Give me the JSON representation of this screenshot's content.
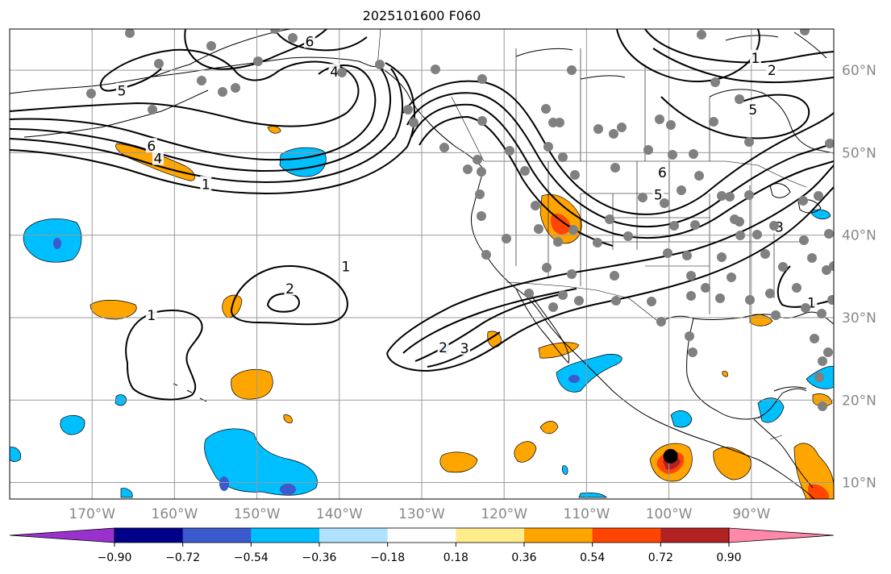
{
  "title": "2025101600 F060",
  "map": {
    "lon_range": [
      -180,
      -80
    ],
    "lat_range": [
      8,
      65
    ],
    "grid_lon": [
      -170,
      -160,
      -150,
      -140,
      -130,
      -120,
      -110,
      -100,
      -90,
      -80
    ],
    "grid_lat": [
      10,
      20,
      30,
      40,
      50,
      60
    ],
    "lon_labels": [
      "170°W",
      "160°W",
      "150°W",
      "140°W",
      "130°W",
      "120°W",
      "110°W",
      "100°W",
      "90°W"
    ],
    "lat_labels": [
      "10°N",
      "20°N",
      "30°N",
      "40°N",
      "50°N",
      "60°N"
    ],
    "gridlines": true,
    "label_color": "#888888",
    "station_color": "#808080",
    "marker": {
      "lon": -99.8,
      "lat": 13.2,
      "color": "#000000"
    }
  },
  "colorbar": {
    "position": "bottom",
    "extend": "both",
    "ticks": [
      "−0.90",
      "−0.72",
      "−0.54",
      "−0.36",
      "−0.18",
      "0.18",
      "0.36",
      "0.54",
      "0.72",
      "0.90"
    ],
    "colors": [
      "#9932cc",
      "#00008b",
      "#3a5acd",
      "#00bfff",
      "#b0e2ff",
      "#ffffff",
      "#ffed8b",
      "#ffa500",
      "#ff4500",
      "#b22222",
      "#ff88aa"
    ]
  },
  "contour_labels": [
    {
      "text": "6",
      "lon": -143.6,
      "lat": 63.5
    },
    {
      "text": "5",
      "lon": -166.4,
      "lat": 57.5
    },
    {
      "text": "4",
      "lon": -140.6,
      "lat": 59.8
    },
    {
      "text": "6",
      "lon": -162.8,
      "lat": 50.8
    },
    {
      "text": "4",
      "lon": -162.0,
      "lat": 49.3
    },
    {
      "text": "1",
      "lon": -156.2,
      "lat": 46.2
    },
    {
      "text": "1",
      "lon": -139.2,
      "lat": 36.2
    },
    {
      "text": "2",
      "lon": -146.0,
      "lat": 33.5
    },
    {
      "text": "1",
      "lon": -162.8,
      "lat": 30.3
    },
    {
      "text": "2",
      "lon": -127.4,
      "lat": 26.4
    },
    {
      "text": "3",
      "lon": -124.8,
      "lat": 26.3
    },
    {
      "text": "6",
      "lon": -100.8,
      "lat": 47.6
    },
    {
      "text": "5",
      "lon": -101.3,
      "lat": 44.9
    },
    {
      "text": "3",
      "lon": -86.6,
      "lat": 41.0
    },
    {
      "text": "1",
      "lon": -82.7,
      "lat": 31.8
    },
    {
      "text": "1",
      "lon": -89.5,
      "lat": 61.5
    },
    {
      "text": "2",
      "lon": -87.5,
      "lat": 60.0
    },
    {
      "text": "5",
      "lon": -89.8,
      "lat": 55.2
    }
  ]
}
